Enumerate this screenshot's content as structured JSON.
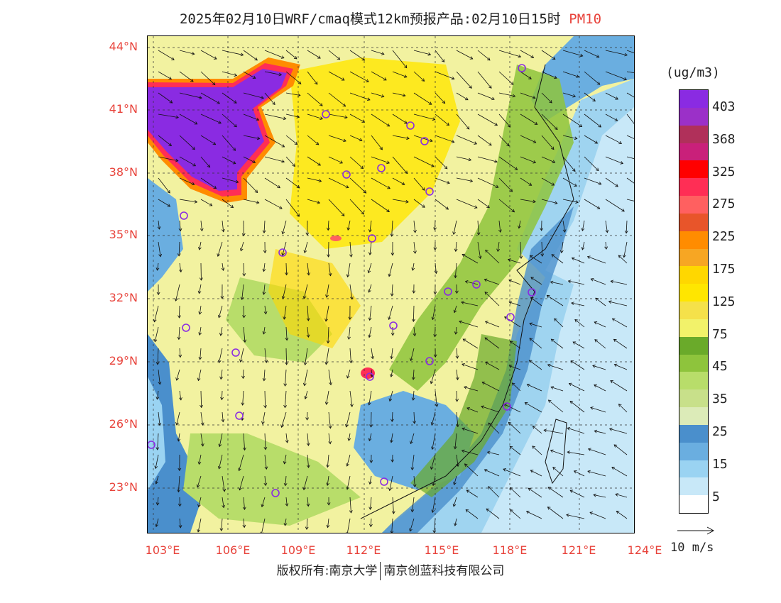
{
  "title": {
    "main": "2025年02月10日WRF/cmaq模式12km预报产品:02月10日15时",
    "pollutant": "PM10"
  },
  "map": {
    "lat_labels": [
      "44°N",
      "41°N",
      "38°N",
      "35°N",
      "32°N",
      "29°N",
      "26°N",
      "23°N"
    ],
    "lon_labels": [
      "103°E",
      "106°E",
      "109°E",
      "112°E",
      "115°E",
      "118°E",
      "121°E",
      "124°E"
    ],
    "colors": {
      "axis_label": "#e8433b",
      "city_marker": "#8a2be2",
      "sea": "#9fd4f0",
      "land_base": "#f2f2a0"
    }
  },
  "colorbar": {
    "unit": "(ug/m3)",
    "labels": [
      "403",
      "368",
      "325",
      "275",
      "225",
      "175",
      "125",
      "75",
      "45",
      "35",
      "25",
      "15",
      "5"
    ],
    "colors": [
      "#8a2be2",
      "#9b30c8",
      "#b0305a",
      "#c9207a",
      "#ff0000",
      "#ff2e55",
      "#ff6060",
      "#e8552a",
      "#ff8c00",
      "#f7a623",
      "#ffd700",
      "#ffe600",
      "#f5e14a",
      "#f2f26a",
      "#6aaa2a",
      "#8ec43c",
      "#b8dd6a",
      "#c8e08a",
      "#dcebb8",
      "#4a8fcc",
      "#6aaee0",
      "#9ad3f2",
      "#c8e8f8",
      "#ffffff"
    ]
  },
  "wind_reference": {
    "label": "10 m/s"
  },
  "footer": {
    "owner": "版权所有:南京大学",
    "company": "南京创蓝科技有限公司"
  }
}
